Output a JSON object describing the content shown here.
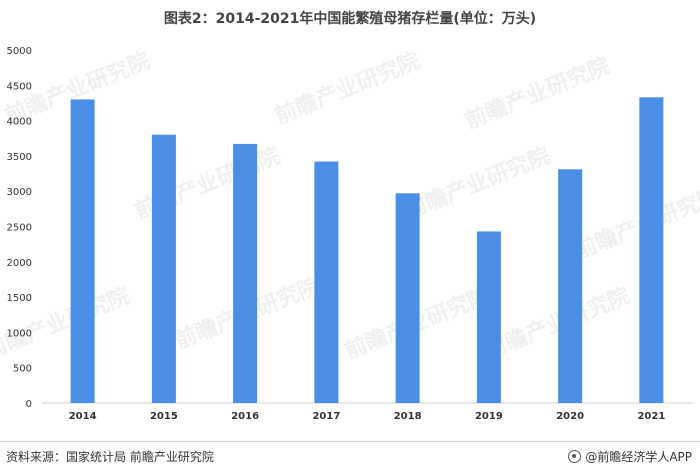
{
  "chart_data": {
    "type": "bar",
    "title": "图表2：2014-2021年中国能繁殖母猪存栏量(单位：万头)",
    "categories": [
      "2014",
      "2015",
      "2016",
      "2017",
      "2018",
      "2019",
      "2020",
      "2021"
    ],
    "values": [
      4300,
      3800,
      3670,
      3420,
      2970,
      2430,
      3310,
      4330
    ],
    "ylim": [
      0,
      5000
    ],
    "yticks": [
      0,
      500,
      1000,
      1500,
      2000,
      2500,
      3000,
      3500,
      4000,
      4500,
      5000
    ],
    "grid": false,
    "bar_color": "#4a8ee6"
  },
  "watermark": {
    "text": "前瞻产业研究院"
  },
  "footer": {
    "source": "资料来源：国家统计局 前瞻产业研究院",
    "brand": "@前瞻经济学人APP"
  }
}
